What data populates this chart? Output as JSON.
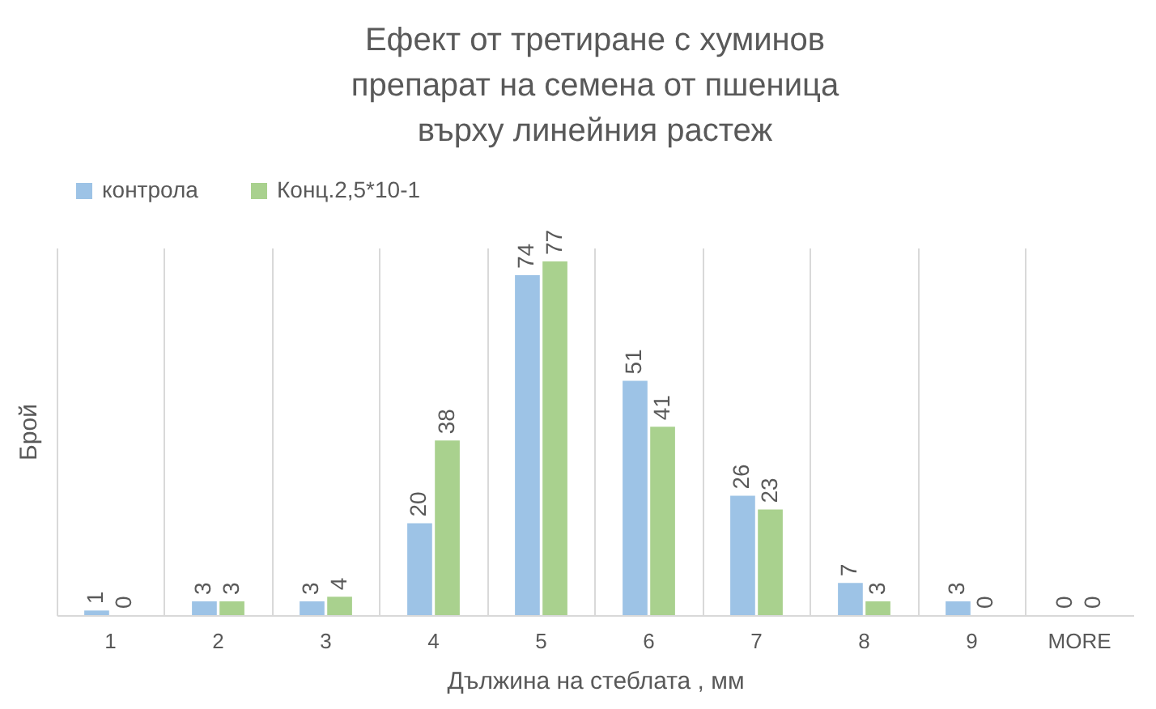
{
  "chart_data": {
    "type": "bar",
    "title": "Ефект от третиране с хуминов препарат на семена от пшеница върху линейния растеж",
    "xlabel": "Дължина на стеблата , мм",
    "ylabel": "Брой",
    "categories": [
      "1",
      "2",
      "3",
      "4",
      "5",
      "6",
      "7",
      "8",
      "9",
      "MORE"
    ],
    "series": [
      {
        "name": "контрола",
        "color": "#9dc3e6",
        "values": [
          1,
          3,
          3,
          20,
          74,
          51,
          26,
          7,
          3,
          0
        ]
      },
      {
        "name": "Конц.2,5*10-1",
        "color": "#a9d18e",
        "values": [
          0,
          3,
          4,
          38,
          77,
          41,
          23,
          3,
          0,
          0
        ]
      }
    ],
    "tick_labels": "x",
    "data_labels": true,
    "grid": "x",
    "legend": "top"
  }
}
